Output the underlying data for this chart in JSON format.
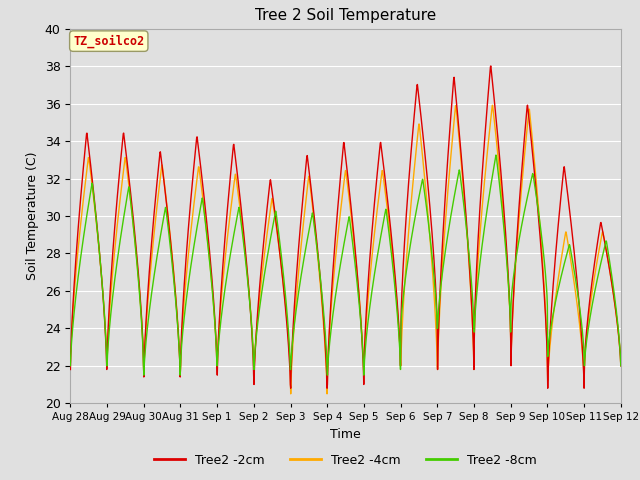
{
  "title": "Tree 2 Soil Temperature",
  "xlabel": "Time",
  "ylabel": "Soil Temperature (C)",
  "annotation": "TZ_soilco2",
  "ylim": [
    20,
    40
  ],
  "background_color": "#e0e0e0",
  "plot_bg_color": "#e0e0e0",
  "grid_color": "#ffffff",
  "x_tick_labels": [
    "Aug 28",
    "Aug 29",
    "Aug 30",
    "Aug 31",
    "Sep 1",
    "Sep 2",
    "Sep 3",
    "Sep 4",
    "Sep 5",
    "Sep 6",
    "Sep 7",
    "Sep 8",
    "Sep 9",
    "Sep 10",
    "Sep 11",
    "Sep 12"
  ],
  "line_colors": {
    "2cm": "#dd0000",
    "4cm": "#ffaa00",
    "8cm": "#44cc00"
  },
  "legend_labels": [
    "Tree2 -2cm",
    "Tree2 -4cm",
    "Tree2 -8cm"
  ],
  "cycle_mins_2cm": [
    24.0,
    21.8,
    22.2,
    21.4,
    22.0,
    21.5,
    21.0,
    20.8,
    21.0,
    22.0,
    24.0,
    21.8,
    23.5,
    22.0,
    20.8,
    22.0
  ],
  "cycle_maxs_2cm": [
    24.0,
    34.5,
    34.5,
    33.5,
    34.3,
    33.9,
    32.0,
    33.3,
    34.0,
    34.0,
    37.1,
    37.5,
    38.1,
    36.0,
    32.7,
    29.7
  ],
  "cycle_mins_4cm": [
    25.0,
    22.2,
    22.2,
    21.5,
    22.0,
    22.0,
    21.5,
    20.5,
    21.5,
    22.0,
    22.0,
    21.8,
    23.5,
    22.2,
    21.2,
    22.0
  ],
  "cycle_maxs_4cm": [
    25.0,
    33.2,
    33.2,
    32.8,
    32.7,
    32.3,
    31.0,
    32.2,
    32.5,
    32.5,
    35.0,
    36.0,
    36.0,
    35.8,
    29.2,
    29.2
  ],
  "cycle_mins_8cm": [
    26.4,
    22.0,
    22.0,
    21.5,
    22.0,
    22.0,
    21.8,
    21.8,
    21.5,
    21.8,
    24.0,
    24.0,
    23.8,
    25.2,
    22.5,
    22.0
  ],
  "cycle_maxs_8cm": [
    26.4,
    31.8,
    31.6,
    30.5,
    31.0,
    30.5,
    30.3,
    30.2,
    30.0,
    30.4,
    32.0,
    32.5,
    33.3,
    32.3,
    28.5,
    28.7
  ],
  "peak_positions_2cm": [
    0.45,
    0.45,
    0.45,
    0.45,
    0.45,
    0.45,
    0.45,
    0.45,
    0.45,
    0.45,
    0.45,
    0.45,
    0.45,
    0.45,
    0.45,
    0.45
  ],
  "peak_positions_4cm": [
    0.5,
    0.5,
    0.5,
    0.5,
    0.5,
    0.5,
    0.5,
    0.5,
    0.5,
    0.5,
    0.5,
    0.5,
    0.5,
    0.5,
    0.5,
    0.5
  ],
  "peak_positions_8cm": [
    0.6,
    0.6,
    0.6,
    0.6,
    0.6,
    0.6,
    0.6,
    0.6,
    0.6,
    0.6,
    0.6,
    0.6,
    0.6,
    0.6,
    0.6,
    0.6
  ]
}
